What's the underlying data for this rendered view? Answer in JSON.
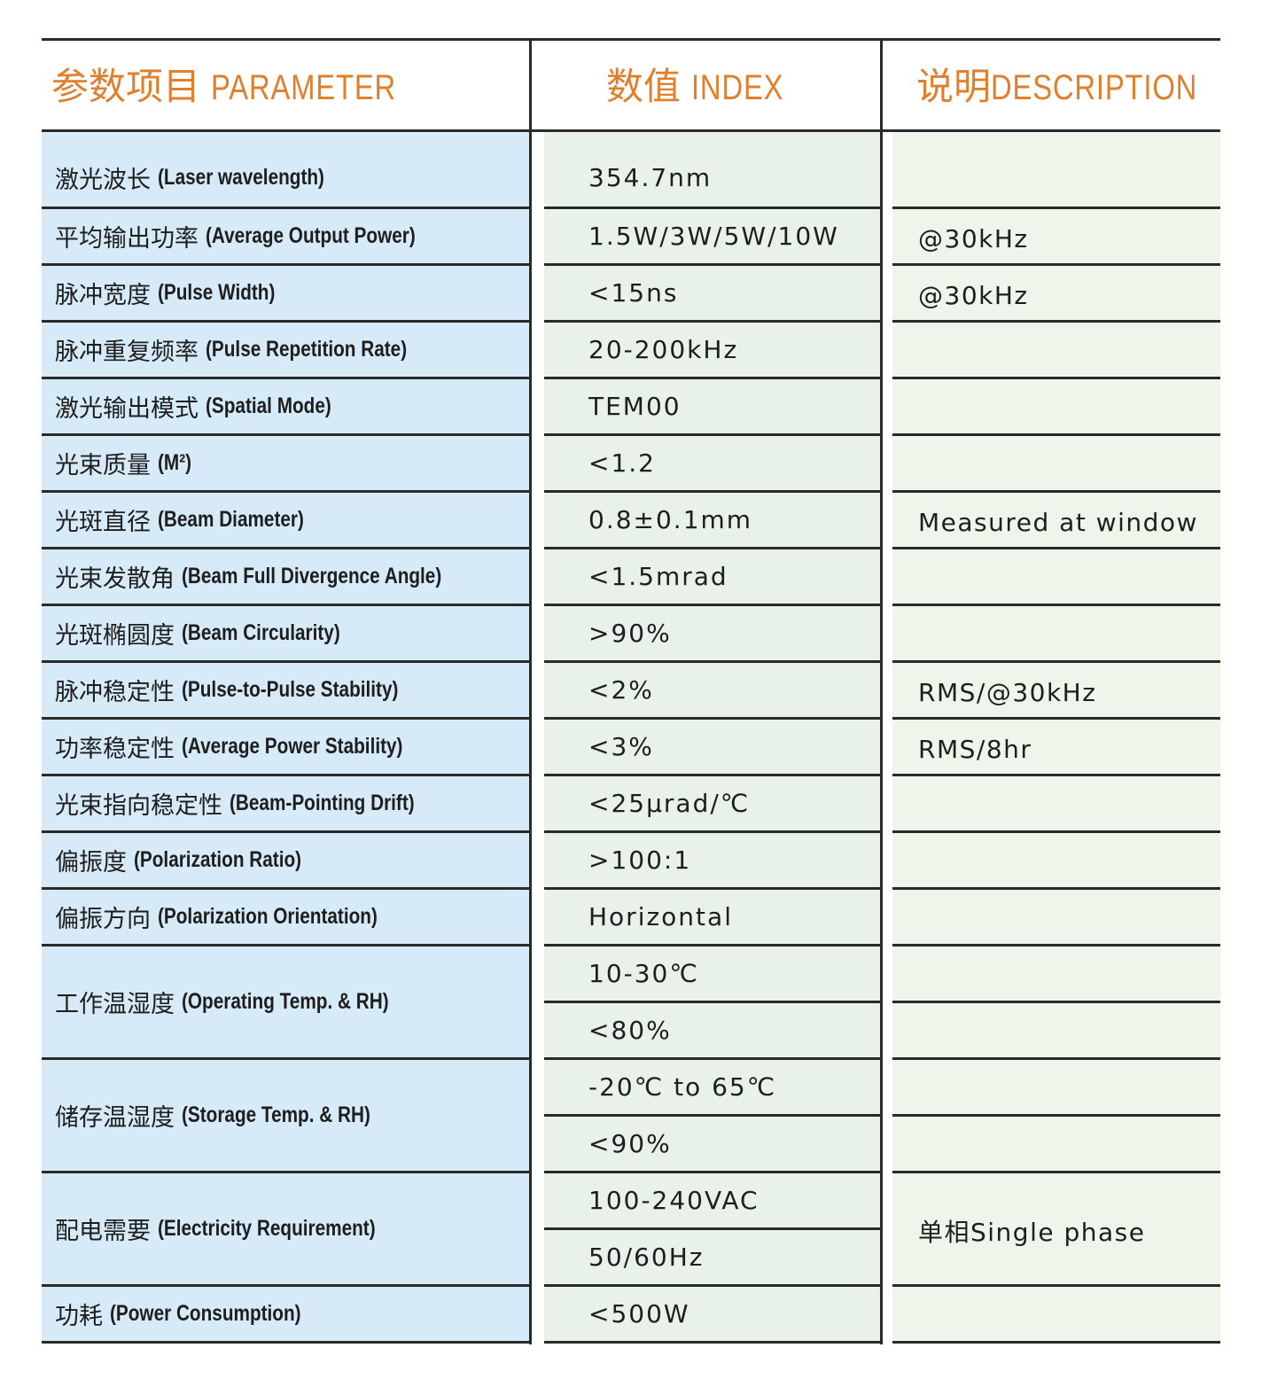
{
  "header": {
    "param_cn": "参数项目",
    "param_en": "PARAMETER",
    "value_cn": "数值",
    "value_en": "INDEX",
    "desc_cn": "说明",
    "desc_en": "DESCRIPTION"
  },
  "rows": [
    {
      "cn": "激光波长",
      "en": "(Laser wavelength)",
      "values": [
        "354.7nm"
      ],
      "desc": ""
    },
    {
      "cn": "平均输出功率",
      "en": "(Average Output Power)",
      "values": [
        "1.5W/3W/5W/10W"
      ],
      "desc": "@30kHz"
    },
    {
      "cn": "脉冲宽度",
      "en": "(Pulse Width)",
      "values": [
        "<15ns"
      ],
      "desc": "@30kHz"
    },
    {
      "cn": "脉冲重复频率",
      "en": "(Pulse Repetition Rate)",
      "values": [
        "20-200kHz"
      ],
      "desc": ""
    },
    {
      "cn": "激光输出模式",
      "en": "(Spatial Mode)",
      "values": [
        "TEM00"
      ],
      "desc": ""
    },
    {
      "cn": "光束质量",
      "en": "(M²)",
      "values": [
        "<1.2"
      ],
      "desc": ""
    },
    {
      "cn": "光斑直径",
      "en": "(Beam Diameter)",
      "values": [
        "0.8±0.1mm"
      ],
      "desc": "Measured at window"
    },
    {
      "cn": "光束发散角",
      "en": "(Beam Full Divergence Angle)",
      "values": [
        "<1.5mrad"
      ],
      "desc": ""
    },
    {
      "cn": "光斑椭圆度",
      "en": "(Beam Circularity)",
      "values": [
        ">90%"
      ],
      "desc": ""
    },
    {
      "cn": "脉冲稳定性",
      "en": "(Pulse-to-Pulse Stability)",
      "values": [
        "<2%"
      ],
      "desc": "RMS/@30kHz"
    },
    {
      "cn": "功率稳定性",
      "en": "(Average Power Stability)",
      "values": [
        "<3%"
      ],
      "desc": "RMS/8hr"
    },
    {
      "cn": "光束指向稳定性",
      "en": "(Beam-Pointing Drift)",
      "values": [
        "<25μrad/℃"
      ],
      "desc": ""
    },
    {
      "cn": "偏振度",
      "en": "(Polarization Ratio)",
      "values": [
        ">100:1"
      ],
      "desc": ""
    },
    {
      "cn": "偏振方向",
      "en": "(Polarization Orientation)",
      "values": [
        "Horizontal"
      ],
      "desc": ""
    },
    {
      "cn": "工作温湿度",
      "en": "(Operating Temp. & RH)",
      "values": [
        "10-30℃",
        "<80%"
      ],
      "desc": ""
    },
    {
      "cn": "储存温湿度",
      "en": "(Storage Temp. & RH)",
      "values": [
        "-20℃ to 65℃",
        "<90%"
      ],
      "desc": ""
    },
    {
      "cn": "配电需要",
      "en": "(Electricity Requirement)",
      "values": [
        "100-240VAC",
        "50/60Hz"
      ],
      "desc": "单相Single phase"
    },
    {
      "cn": "功耗",
      "en": "(Power Consumption)",
      "values": [
        "<500W"
      ],
      "desc": ""
    }
  ]
}
